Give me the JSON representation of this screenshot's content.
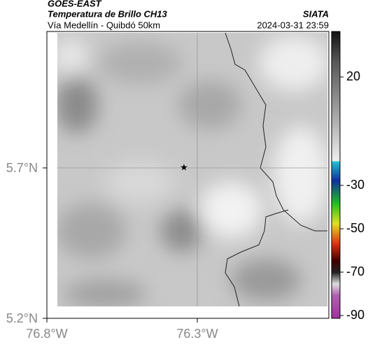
{
  "header": {
    "source": "GOES-EAST",
    "title": "Temperatura de Brillo CH13",
    "subtitle": "Vía Medellín - Quibdó 50km",
    "agency": "SIATA",
    "timestamp": "2024-03-31 23:59"
  },
  "axes": {
    "y_labels": [
      "5.7°N",
      "5.2°N"
    ],
    "x_labels": [
      "76.8°W",
      "76.3°W"
    ]
  },
  "colorbar": {
    "ticks": [
      20,
      -30,
      -50,
      -70,
      -90
    ]
  }
}
